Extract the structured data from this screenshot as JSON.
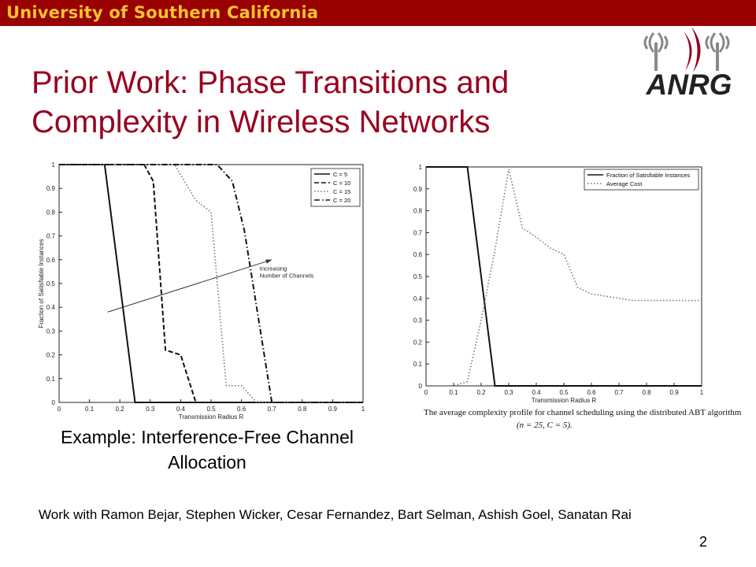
{
  "banner": {
    "text": "University of Southern California",
    "color": "#990000",
    "text_color": "#f4c430"
  },
  "title": "Prior Work: Phase Transitions and Complexity in Wireless Networks",
  "logo": {
    "text": "ANRG",
    "icon": "antenna-signal-icon"
  },
  "caption": "Example: Interference-Free Channel Allocation",
  "figure_caption": {
    "line1": "The average complexity profile for channel scheduling using the distributed ABT algorithm",
    "line2": "(n = 25, C = 5)."
  },
  "credits": "Work with Ramon Bejar, Stephen Wicker, Cesar Fernandez, Bart Selman, Ashish Goel, Sanatan Rai",
  "page_number": "2",
  "chart_data": [
    {
      "type": "line",
      "xlabel": "Transmission Radius R",
      "ylabel": "Fraction of Satisfiable Instances",
      "xlim": [
        0,
        1
      ],
      "ylim": [
        0,
        1
      ],
      "xticks": [
        "0",
        "0.1",
        "0.2",
        "0.3",
        "0.4",
        "0.5",
        "0.6",
        "0.7",
        "0.8",
        "0.9",
        "1"
      ],
      "yticks": [
        "0",
        "0.1",
        "0.2",
        "0.3",
        "0.4",
        "0.5",
        "0.6",
        "0.7",
        "0.8",
        "0.9",
        "1"
      ],
      "legend_position": "top-right",
      "annotation": {
        "line1": "Increasing",
        "line2": "Number of Channels"
      },
      "series": [
        {
          "name": "C = 5",
          "style": "solid",
          "x": [
            0,
            0.15,
            0.25,
            1
          ],
          "y": [
            1,
            1,
            0,
            0
          ]
        },
        {
          "name": "C = 10",
          "style": "dashed",
          "x": [
            0,
            0.28,
            0.31,
            0.35,
            0.4,
            0.45,
            1
          ],
          "y": [
            1,
            1,
            0.93,
            0.22,
            0.2,
            0,
            0
          ]
        },
        {
          "name": "C = 15",
          "style": "dotted",
          "x": [
            0,
            0.38,
            0.45,
            0.5,
            0.55,
            0.6,
            0.65,
            1
          ],
          "y": [
            1,
            1,
            0.85,
            0.8,
            0.07,
            0.07,
            0,
            0
          ]
        },
        {
          "name": "C = 20",
          "style": "dashdot",
          "x": [
            0,
            0.52,
            0.57,
            0.61,
            0.7,
            1
          ],
          "y": [
            1,
            1,
            0.93,
            0.72,
            0,
            0
          ]
        }
      ],
      "arrow": {
        "from": [
          0.16,
          0.38
        ],
        "to": [
          0.7,
          0.6
        ]
      }
    },
    {
      "type": "line",
      "xlabel": "Transmission Radius R",
      "xlim": [
        0,
        1
      ],
      "ylim": [
        0,
        1
      ],
      "xticks": [
        "0",
        "0.1",
        "0.2",
        "0.3",
        "0.4",
        "0.5",
        "0.6",
        "0.7",
        "0.8",
        "0.9",
        "1"
      ],
      "yticks": [
        "0",
        "0.1",
        "0.2",
        "0.3",
        "0.4",
        "0.5",
        "0.6",
        "0.7",
        "0.8",
        "0.9",
        "1"
      ],
      "legend_position": "top-right",
      "series": [
        {
          "name": "Fraction of Satisfiable Instances",
          "style": "solid",
          "x": [
            0,
            0.15,
            0.25,
            1
          ],
          "y": [
            1,
            1,
            0,
            0
          ]
        },
        {
          "name": "Average Cost",
          "style": "dotted",
          "x": [
            0,
            0.1,
            0.15,
            0.2,
            0.25,
            0.3,
            0.35,
            0.4,
            0.45,
            0.5,
            0.55,
            0.6,
            0.65,
            0.7,
            0.75,
            0.8,
            0.85,
            0.9,
            0.95,
            1
          ],
          "y": [
            0,
            0,
            0.02,
            0.3,
            0.62,
            0.99,
            0.72,
            0.68,
            0.63,
            0.6,
            0.45,
            0.42,
            0.41,
            0.4,
            0.39,
            0.39,
            0.39,
            0.39,
            0.39,
            0.39
          ]
        }
      ]
    }
  ]
}
